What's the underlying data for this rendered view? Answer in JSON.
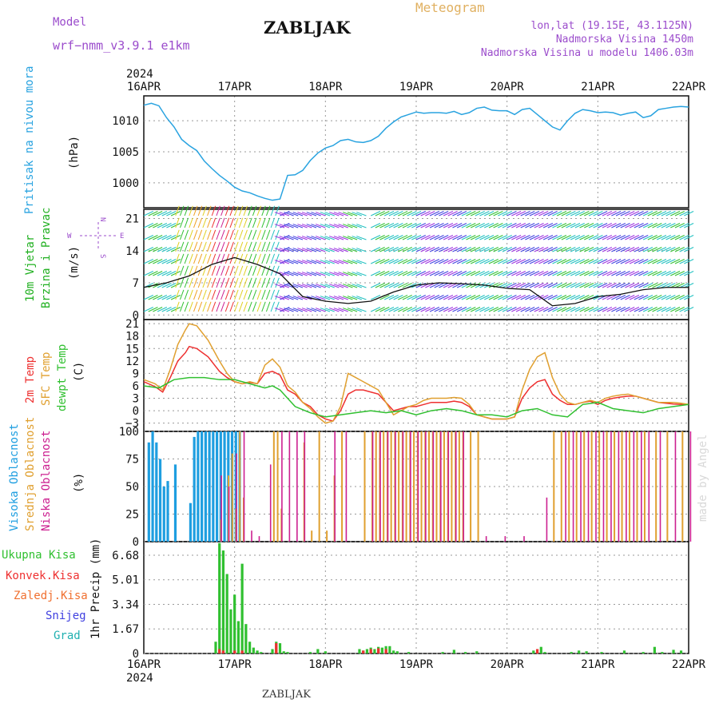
{
  "header": {
    "model_label": "Model",
    "model_name": "wrf−nmm_v3.9.1  e1km",
    "title": "ZABLJAK",
    "meteogram_label": "Meteogram",
    "station_lines": [
      "lon,lat (19.15E, 43.1125N)",
      "Nadmorska Visina 1450m",
      "Nadmorska Visina u modelu 1406.03m"
    ],
    "footer": "ZABLJAK",
    "watermark": "made by Angel"
  },
  "colors": {
    "pressure": "#29a3e0",
    "temp2m": "#ee3030",
    "sfc": "#e0a030",
    "dewpt": "#30c030",
    "high_cloud": "#1e9ee0",
    "mid_cloud": "#e0a030",
    "low_cloud": "#cc2090",
    "rain_total": "#30c030",
    "rain_conv": "#ee3030",
    "rain_frz": "#f07030",
    "snow": "#4040e0",
    "hail": "#20b0b0",
    "wind_label": "#20b020",
    "wind_dir": "#9b4ccc"
  },
  "time_axis": {
    "year": "2024",
    "ticks": [
      "16APR",
      "17APR",
      "18APR",
      "19APR",
      "20APR",
      "21APR",
      "22APR"
    ]
  },
  "panels": {
    "pressure": {
      "label": "Pritisak na nivou mora",
      "unit": "(hPa)",
      "ticks": [
        "1010",
        "1005",
        "1000"
      ]
    },
    "wind": {
      "label1": "10m Vjetar",
      "label2": "Brzina i Pravac",
      "unit": "(m/s)",
      "ticks": [
        "21",
        "14",
        "7",
        "0"
      ],
      "dir_n": "N",
      "dir_s": "S",
      "dir_e": "E",
      "dir_w": "W"
    },
    "temp": {
      "label1": "2m Temp",
      "label2": "SFC Temp",
      "label3": "dewpt Temp",
      "unit": "(C)",
      "ticks": [
        "21",
        "18",
        "15",
        "12",
        "9",
        "6",
        "3",
        "0",
        "−3"
      ]
    },
    "cloud": {
      "label1": "Visoka Oblacnost",
      "label2": "Srednja Oblacnost",
      "label3": "Niska Oblacnost",
      "unit": "(%)",
      "ticks": [
        "100",
        "75",
        "50",
        "25",
        "0"
      ]
    },
    "precip": {
      "legend": [
        "Ukupna Kisa",
        "Konvek.Kisa",
        "Zaledj.Kisa",
        "Snijeg",
        "Grad"
      ],
      "unit": "1hr Precip (mm)",
      "ticks": [
        "6.68",
        "5.01",
        "3.34",
        "1.67",
        "0"
      ]
    }
  },
  "chart_data": [
    {
      "type": "line",
      "title": "Pritisak na nivou mora",
      "ylabel": "(hPa)",
      "xlim": [
        0,
        144
      ],
      "ylim": [
        996,
        1014
      ],
      "series": [
        {
          "name": "Pritisak na nivou mora",
          "x": [
            0,
            2,
            4,
            6,
            8,
            10,
            12,
            14,
            16,
            18,
            20,
            22,
            24,
            26,
            28,
            30,
            32,
            34,
            36,
            38,
            40,
            42,
            44,
            46,
            48,
            50,
            52,
            54,
            56,
            58,
            60,
            62,
            64,
            66,
            68,
            70,
            72,
            74,
            76,
            78,
            80,
            82,
            84,
            86,
            88,
            90,
            92,
            94,
            96,
            98,
            100,
            102,
            104,
            106,
            108,
            110,
            112,
            114,
            116,
            118,
            120,
            122,
            124,
            126,
            128,
            130,
            132,
            134,
            136,
            138,
            140,
            142,
            144
          ],
          "y": [
            1012.5,
            1012.8,
            1012.4,
            1010.5,
            1009,
            1007,
            1006,
            1005.2,
            1003.5,
            1002.3,
            1001.2,
            1000.3,
            999.3,
            998.7,
            998.4,
            997.9,
            997.5,
            997.2,
            997.4,
            1001.2,
            1001.3,
            1002,
            1003.6,
            1004.8,
            1005.6,
            1006,
            1006.8,
            1007,
            1006.6,
            1006.5,
            1006.8,
            1007.5,
            1008.8,
            1009.8,
            1010.6,
            1011,
            1011.4,
            1011.2,
            1011.3,
            1011.3,
            1011.2,
            1011.5,
            1011,
            1011.3,
            1012,
            1012.2,
            1011.7,
            1011.6,
            1011.6,
            1011,
            1011.8,
            1012,
            1011,
            1010,
            1009,
            1008.5,
            1010,
            1011.2,
            1011.8,
            1011.6,
            1011.3,
            1011.4,
            1011.3,
            1010.9,
            1011.2,
            1011.4,
            1010.5,
            1010.8,
            1011.8,
            1012,
            1012.2,
            1012.3,
            1012.2
          ]
        }
      ]
    },
    {
      "type": "line",
      "title": "10m Vjetar Brzina i Pravac",
      "ylabel": "(m/s)",
      "xlim": [
        0,
        144
      ],
      "ylim": [
        -1,
        23
      ],
      "series": [
        {
          "name": "10m Vjetar",
          "x": [
            0,
            6,
            12,
            18,
            24,
            30,
            36,
            42,
            48,
            54,
            60,
            66,
            72,
            78,
            84,
            90,
            96,
            102,
            108,
            114,
            120,
            126,
            132,
            138,
            144
          ],
          "y": [
            6,
            7,
            8.5,
            11,
            12.5,
            11,
            9,
            4,
            3,
            2.5,
            3,
            5,
            6.5,
            7,
            6.8,
            6.5,
            5.8,
            5.5,
            2,
            2.5,
            4,
            4.5,
            5.5,
            6,
            6
          ]
        }
      ]
    },
    {
      "type": "line",
      "title": "2m Temp / SFC Temp / dewpt Temp",
      "ylabel": "(C)",
      "xlim": [
        0,
        144
      ],
      "ylim": [
        -5,
        22
      ],
      "series": [
        {
          "name": "2m Temp",
          "x": [
            0,
            3,
            5,
            7,
            9,
            11,
            12,
            14,
            17,
            20,
            22,
            24,
            26,
            28,
            30,
            32,
            34,
            36,
            38,
            40,
            42,
            44,
            46,
            48,
            50,
            52,
            54,
            56,
            58,
            60,
            62,
            64,
            66,
            68,
            70,
            72,
            74,
            76,
            78,
            80,
            82,
            84,
            86,
            88,
            90,
            92,
            94,
            96,
            98,
            100,
            102,
            104,
            106,
            108,
            110,
            112,
            114,
            116,
            118,
            120,
            122,
            124,
            126,
            128,
            130,
            132,
            134,
            136,
            138,
            140,
            142,
            144
          ],
          "y": [
            7,
            5.8,
            4.5,
            8,
            12,
            14,
            15.5,
            15,
            13,
            9.5,
            8,
            7,
            6.5,
            6.8,
            6.5,
            9,
            9.5,
            8.6,
            5,
            4,
            2,
            1,
            -1,
            -2,
            -2.5,
            0,
            4,
            5,
            5,
            4.5,
            4,
            2,
            0,
            0.5,
            1,
            1,
            1.5,
            2,
            2,
            2,
            2.3,
            2,
            1,
            -1,
            -1.5,
            -2,
            -2,
            -2,
            -1.5,
            3,
            5.5,
            7,
            7.5,
            4,
            2.5,
            1.5,
            1.5,
            2,
            2.3,
            1.5,
            2.5,
            3,
            3.3,
            3.5,
            3.5,
            3,
            2.5,
            2,
            1.8,
            1.6,
            1.5,
            1.5
          ]
        },
        {
          "name": "SFC Temp",
          "x": [
            0,
            3,
            5,
            7,
            9,
            11,
            12,
            14,
            17,
            20,
            22,
            24,
            26,
            28,
            30,
            32,
            34,
            36,
            38,
            40,
            42,
            44,
            46,
            48,
            50,
            52,
            54,
            56,
            58,
            60,
            62,
            64,
            66,
            68,
            70,
            72,
            74,
            76,
            78,
            80,
            82,
            84,
            86,
            88,
            90,
            92,
            94,
            96,
            98,
            100,
            102,
            104,
            106,
            108,
            110,
            112,
            114,
            116,
            118,
            120,
            122,
            124,
            126,
            128,
            130,
            132,
            134,
            136,
            138,
            140,
            142,
            144
          ],
          "y": [
            7.5,
            6.5,
            5,
            10,
            16,
            19.5,
            21,
            20.5,
            17,
            12,
            9,
            7,
            6.5,
            7,
            6.5,
            11,
            12.5,
            10.5,
            6,
            4.5,
            2,
            0.5,
            -1.5,
            -3,
            -2.5,
            1,
            9,
            8,
            7,
            6,
            5,
            2,
            -1,
            0,
            1,
            1.5,
            2.5,
            3,
            3,
            3,
            3.2,
            3,
            1.5,
            -1,
            -1.5,
            -2,
            -2,
            -2,
            -1.5,
            5,
            10,
            13,
            14,
            8,
            4,
            2,
            1.5,
            2,
            2.5,
            2,
            3,
            3.5,
            3.8,
            4,
            3.5,
            3,
            2.5,
            2,
            2,
            2,
            1.8,
            1.5
          ]
        },
        {
          "name": "dewpt Temp",
          "x": [
            0,
            4,
            8,
            12,
            16,
            20,
            24,
            28,
            32,
            34,
            36,
            38,
            40,
            44,
            48,
            52,
            56,
            60,
            64,
            68,
            72,
            76,
            80,
            84,
            88,
            92,
            96,
            100,
            104,
            108,
            112,
            116,
            120,
            124,
            128,
            132,
            136,
            140,
            144
          ],
          "y": [
            6,
            5.5,
            7.5,
            8,
            8,
            7.5,
            7.5,
            6.5,
            5.5,
            6,
            5,
            3,
            1,
            -0.5,
            -1.5,
            -1,
            -0.5,
            0,
            -0.5,
            0,
            -1,
            0,
            0.5,
            0,
            -1,
            -1,
            -1.5,
            0,
            0.5,
            -1,
            -1.5,
            1.5,
            2,
            0.5,
            0,
            -0.5,
            0.5,
            1,
            1.5
          ]
        }
      ]
    },
    {
      "type": "bar",
      "title": "Oblacnost",
      "ylabel": "(%)",
      "xlim": [
        0,
        144
      ],
      "ylim": [
        0,
        100
      ],
      "series": [
        {
          "name": "Visoka Oblacnost",
          "x": [
            1,
            2,
            3,
            4,
            5,
            6,
            8,
            12,
            13,
            14,
            15,
            16,
            17,
            18,
            19,
            20,
            21,
            22,
            23,
            24,
            25
          ],
          "y": [
            90,
            100,
            90,
            75,
            50,
            55,
            70,
            35,
            95,
            100,
            100,
            100,
            100,
            100,
            100,
            100,
            100,
            100,
            100,
            100,
            100
          ]
        },
        {
          "name": "Srednja Oblacnost",
          "x": [
            20,
            22,
            23,
            24,
            25,
            26,
            34,
            35,
            36,
            42,
            44,
            46,
            48,
            50,
            52,
            58,
            60,
            61,
            62,
            63,
            64,
            65,
            66,
            67,
            68,
            69,
            70,
            71,
            72,
            73,
            74,
            75,
            76,
            77,
            78,
            79,
            80,
            81,
            82,
            83,
            84,
            86,
            88,
            108,
            110,
            112,
            114,
            116,
            118,
            120,
            122,
            124,
            126,
            128,
            130,
            132,
            135,
            138,
            142
          ],
          "y": [
            20,
            60,
            80,
            30,
            100,
            40,
            100,
            100,
            30,
            90,
            10,
            100,
            10,
            60,
            100,
            100,
            100,
            100,
            100,
            100,
            100,
            100,
            100,
            100,
            100,
            100,
            100,
            100,
            100,
            100,
            100,
            100,
            100,
            100,
            100,
            100,
            100,
            100,
            100,
            100,
            100,
            100,
            100,
            100,
            100,
            100,
            100,
            100,
            100,
            100,
            100,
            100,
            100,
            100,
            100,
            100,
            100,
            100,
            100
          ]
        },
        {
          "name": "Niska Oblacnost",
          "x": [
            20,
            22,
            24,
            26,
            28,
            30,
            33,
            36,
            38,
            40,
            42,
            50,
            53,
            60,
            62,
            64,
            66,
            68,
            70,
            72,
            74,
            76,
            78,
            80,
            82,
            84,
            90,
            95,
            100,
            106,
            111,
            113,
            115,
            117,
            119,
            121,
            123,
            125,
            127,
            129,
            131,
            133,
            136,
            140,
            144
          ],
          "y": [
            60,
            50,
            80,
            100,
            10,
            5,
            70,
            100,
            100,
            100,
            100,
            100,
            100,
            100,
            100,
            100,
            100,
            100,
            100,
            100,
            100,
            100,
            100,
            100,
            100,
            100,
            5,
            5,
            5,
            40,
            100,
            100,
            100,
            100,
            100,
            100,
            100,
            100,
            100,
            100,
            100,
            100,
            100,
            100,
            100
          ]
        }
      ]
    },
    {
      "type": "bar",
      "title": "1hr Precip",
      "ylabel": "1hr Precip (mm)",
      "xlim": [
        0,
        144
      ],
      "ylim": [
        0,
        7.6
      ],
      "series": [
        {
          "name": "Ukupna Kisa",
          "x": [
            19,
            20,
            21,
            22,
            23,
            24,
            25,
            26,
            27,
            28,
            29,
            30,
            31,
            34,
            35,
            36,
            37,
            38,
            44,
            46,
            48,
            57,
            58,
            59,
            60,
            61,
            62,
            63,
            64,
            65,
            66,
            67,
            70,
            79,
            82,
            85,
            88,
            103,
            104,
            105,
            106,
            113,
            115,
            117,
            121,
            127,
            132,
            135,
            137,
            140,
            142
          ],
          "y": [
            0.8,
            7.5,
            7,
            5.4,
            3,
            4,
            2.2,
            6.1,
            2,
            0.8,
            0.4,
            0.2,
            0.1,
            0.3,
            0.8,
            0.7,
            0.15,
            0.1,
            0.1,
            0.3,
            0.15,
            0.3,
            0.2,
            0.3,
            0.4,
            0.3,
            0.45,
            0.4,
            0.5,
            0.5,
            0.2,
            0.15,
            0.1,
            0.1,
            0.25,
            0.1,
            0.15,
            0.2,
            0.1,
            0.45,
            0.1,
            0.1,
            0.2,
            0.15,
            0.1,
            0.2,
            0.1,
            0.45,
            0.1,
            0.25,
            0.2
          ]
        },
        {
          "name": "Konvek.Kisa",
          "x": [
            20,
            21,
            24,
            26,
            35,
            58,
            60,
            62,
            64,
            104
          ],
          "y": [
            0.3,
            0.2,
            0.2,
            0.2,
            0.7,
            0.2,
            0.3,
            0.35,
            0.3,
            0.3
          ]
        }
      ]
    }
  ]
}
